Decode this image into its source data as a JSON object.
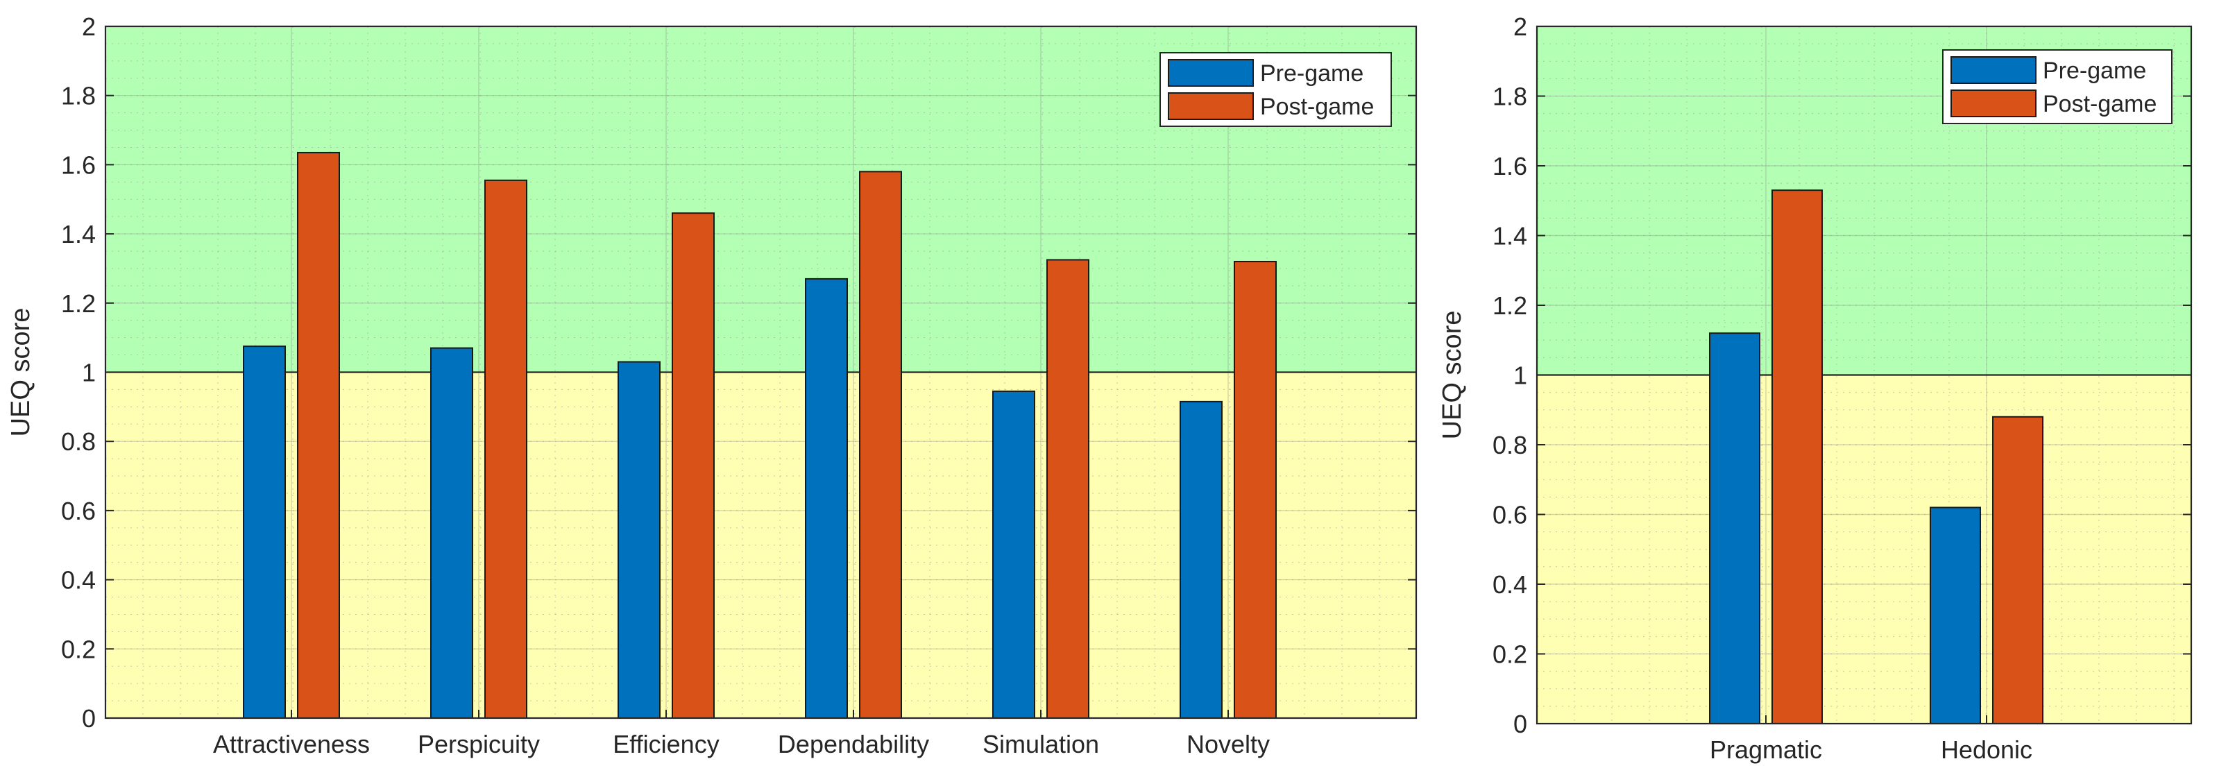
{
  "chart_data": [
    {
      "type": "bar",
      "categories": [
        "Attractiveness",
        "Perspicuity",
        "Efficiency",
        "Dependability",
        "Simulation",
        "Novelty"
      ],
      "series": [
        {
          "name": "Pre-game",
          "values": [
            1.075,
            1.07,
            1.03,
            1.27,
            0.945,
            0.915
          ],
          "color": "#0072BD"
        },
        {
          "name": "Post-game",
          "values": [
            1.635,
            1.555,
            1.46,
            1.58,
            1.325,
            1.32
          ],
          "color": "#D95319"
        }
      ],
      "xlabel": "",
      "ylabel": "UEQ score",
      "ylim": [
        0,
        2
      ],
      "yticks": [
        0,
        0.2,
        0.4,
        0.6,
        0.8,
        1,
        1.2,
        1.4,
        1.6,
        1.8,
        2
      ],
      "ytick_labels": [
        "0",
        "0.2",
        "0.4",
        "0.6",
        "0.8",
        "1",
        "1.2",
        "1.4",
        "1.6",
        "1.8",
        "2"
      ],
      "threshold": 1,
      "background_above_threshold": "#B3FFB3",
      "background_below_threshold": "#FFFFB3",
      "grid": true,
      "legend_position": "top-right"
    },
    {
      "type": "bar",
      "categories": [
        "Pragmatic",
        "Hedonic"
      ],
      "series": [
        {
          "name": "Pre-game",
          "values": [
            1.12,
            0.62
          ],
          "color": "#0072BD"
        },
        {
          "name": "Post-game",
          "values": [
            1.53,
            0.88
          ],
          "color": "#D95319"
        }
      ],
      "xlabel": "",
      "ylabel": "UEQ score",
      "ylim": [
        0,
        2
      ],
      "yticks": [
        0,
        0.2,
        0.4,
        0.6,
        0.8,
        1,
        1.2,
        1.4,
        1.6,
        1.8,
        2
      ],
      "ytick_labels": [
        "0",
        "0.2",
        "0.4",
        "0.6",
        "0.8",
        "1",
        "1.2",
        "1.4",
        "1.6",
        "1.8",
        "2"
      ],
      "threshold": 1,
      "background_above_threshold": "#B3FFB3",
      "background_below_threshold": "#FFFFB3",
      "grid": true,
      "legend_position": "top-right"
    }
  ]
}
